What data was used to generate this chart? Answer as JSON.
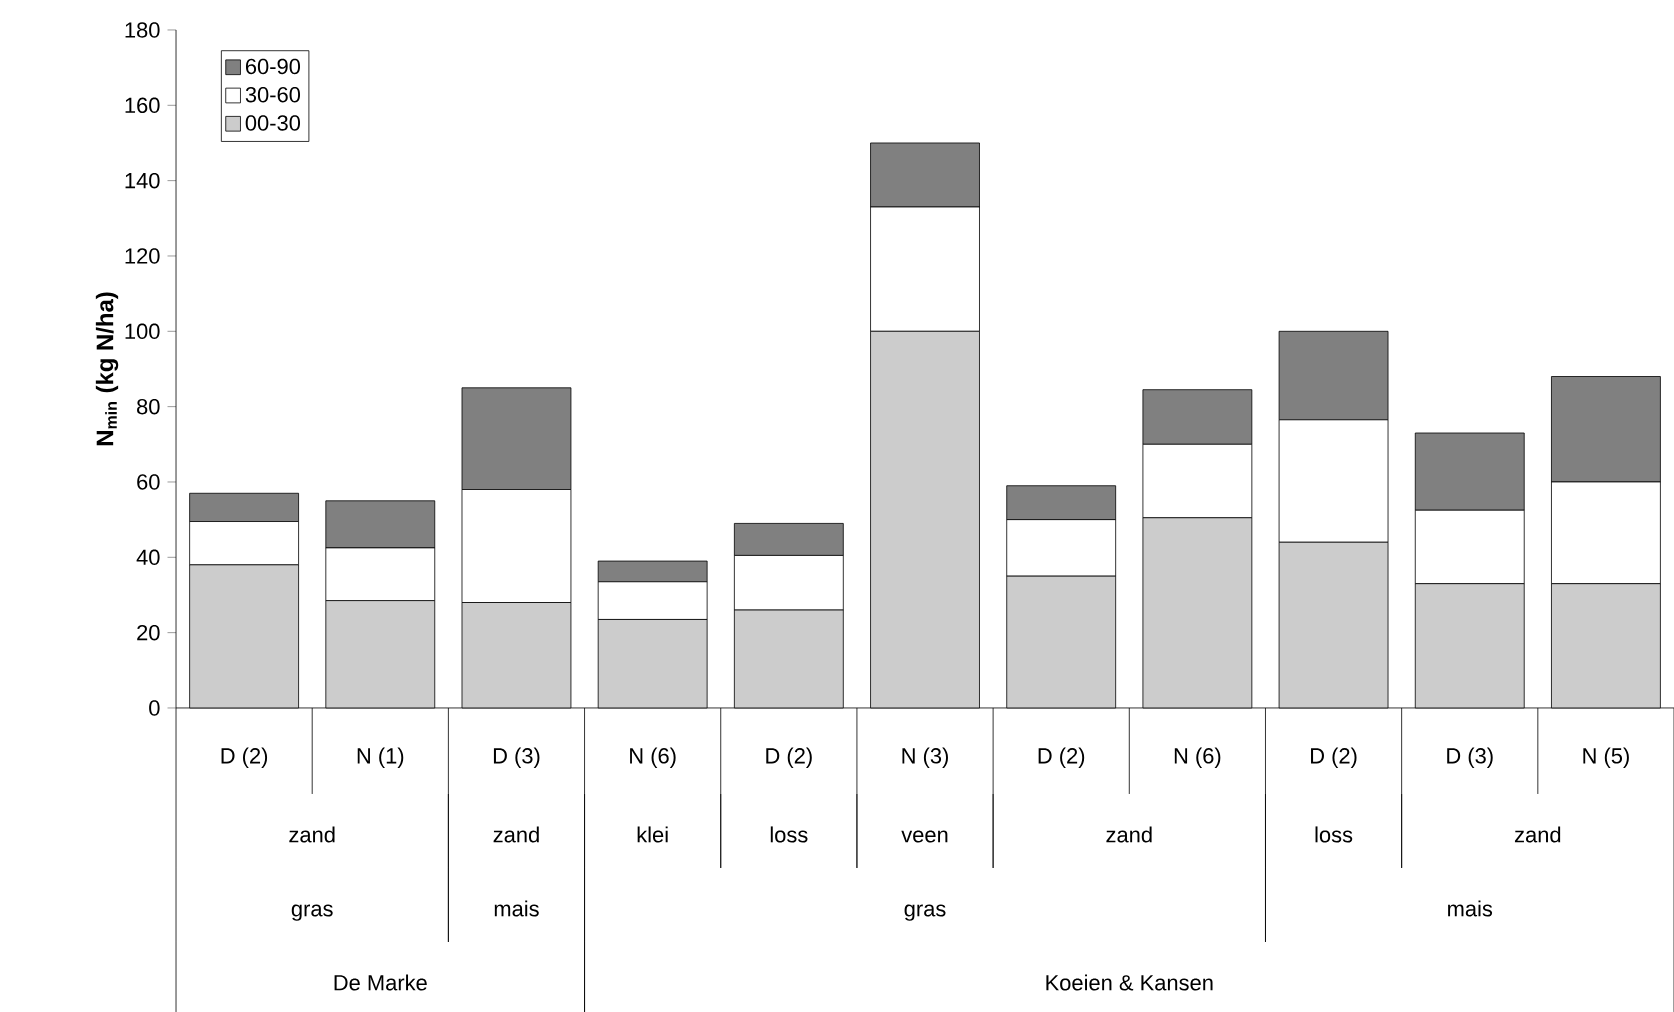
{
  "chart_data": {
    "type": "bar",
    "stacked": true,
    "ylabel": "**N$_{min}$ (kg N/ha)**",
    "categories": [
      "D (2)",
      "N (1)",
      "D (3)",
      "N (6)",
      "D (2)",
      "N (3)",
      "D (2)",
      "N (6)",
      "D (2)",
      "D (3)",
      "N (5)"
    ],
    "series": [
      {
        "name": "00-30",
        "color": "#cccccc",
        "values": [
          38,
          28.5,
          28,
          23.5,
          26,
          100,
          35,
          50.5,
          44,
          33,
          33
        ]
      },
      {
        "name": "30-60",
        "color": "#ffffff",
        "values": [
          11.5,
          14,
          30,
          10,
          14.5,
          33,
          15,
          19.5,
          32.5,
          19.5,
          27
        ]
      },
      {
        "name": "60-90",
        "color": "#808080",
        "values": [
          7.5,
          12.5,
          27,
          5.5,
          8.5,
          17,
          9,
          14.5,
          23.5,
          20.5,
          28
        ]
      }
    ],
    "ylim": [
      0,
      180
    ],
    "yticks": [
      0,
      20,
      40,
      60,
      80,
      100,
      120,
      140,
      160,
      180
    ],
    "legend": "top left",
    "grid": false,
    "annotations": [
      "zand",
      "zand",
      "klei",
      "loss",
      "veen",
      "zand",
      "loss",
      "zand",
      "gras",
      "mais",
      "gras",
      "mais",
      "De Marke",
      "Koeien & Kansen"
    ]
  }
}
